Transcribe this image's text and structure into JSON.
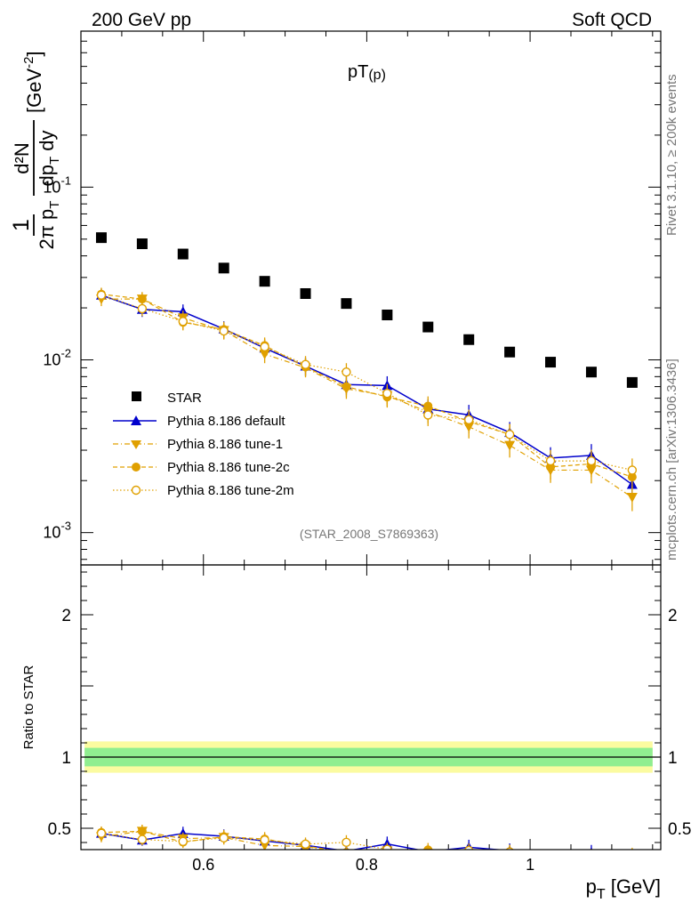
{
  "header": {
    "left": "200 GeV pp",
    "right": "Soft QCD"
  },
  "side": {
    "rivet": "Rivet 3.1.10, ≥ 200k events",
    "mcplots": "mcplots.cern.ch [arXiv:1306.3436]"
  },
  "chart_data": {
    "type": "scatter",
    "title": "pT(p)",
    "title_main": "pT",
    "title_sub": "(p)",
    "analysis_label": "(STAR_2008_S7869363)",
    "xlabel": "p_T [GeV]",
    "xlabel_main": "p",
    "xlabel_sub": "T",
    "xlabel_unit": "[GeV]",
    "ylabel": "1/(2π p_T) d²N/(dp_T dy) [GeV⁻²]",
    "ylabel_parts": {
      "one": "1",
      "denom_a": "2π p",
      "denom_sub": "T",
      "num": "d²N",
      "num_b": "dp",
      "num_b_sub": "T",
      "num_c": " dy",
      "unit": "[GeV",
      "unit_sup": "-2",
      "unit_end": "]"
    },
    "xlim": [
      0.45,
      1.16
    ],
    "ylim": [
      0.00065,
      0.8
    ],
    "yscale": "log",
    "x_ticks": [
      {
        "v": 0.6,
        "label": "0.6"
      },
      {
        "v": 0.8,
        "label": "0.8"
      },
      {
        "v": 1.0,
        "label": "1"
      }
    ],
    "y_ticks": [
      {
        "v": 0.001,
        "base": "10",
        "exp": "-3"
      },
      {
        "v": 0.01,
        "base": "10",
        "exp": "-2"
      },
      {
        "v": 0.1,
        "base": "10",
        "exp": "-1"
      }
    ],
    "x": [
      0.475,
      0.525,
      0.575,
      0.625,
      0.675,
      0.725,
      0.775,
      0.825,
      0.875,
      0.925,
      0.975,
      1.025,
      1.075,
      1.125
    ],
    "series": [
      {
        "name": "STAR",
        "color": "#000000",
        "marker": "square",
        "line": "none",
        "values": [
          0.051,
          0.047,
          0.041,
          0.034,
          0.0285,
          0.0242,
          0.0212,
          0.0182,
          0.0155,
          0.0131,
          0.0111,
          0.0097,
          0.0085,
          0.0074
        ]
      },
      {
        "name": "Pythia 8.186 default",
        "color": "#0000cc",
        "marker": "triangle-up",
        "line": "solid",
        "values": [
          0.0237,
          0.0196,
          0.019,
          0.0151,
          0.0117,
          0.0092,
          0.0072,
          0.0071,
          0.0052,
          0.0048,
          0.0038,
          0.0027,
          0.0028,
          0.0019
        ]
      },
      {
        "name": "Pythia 8.186 tune-1",
        "color": "#e0a000",
        "marker": "triangle-down",
        "line": "dashdot",
        "values": [
          0.0225,
          0.0225,
          0.0175,
          0.0148,
          0.0108,
          0.009,
          0.0068,
          0.0062,
          0.005,
          0.0041,
          0.0032,
          0.0023,
          0.0023,
          0.0016
        ]
      },
      {
        "name": "Pythia 8.186 tune-2c",
        "color": "#e0a000",
        "marker": "circle",
        "line": "dashed",
        "values": [
          0.024,
          0.0225,
          0.0165,
          0.015,
          0.0121,
          0.0091,
          0.007,
          0.0061,
          0.0054,
          0.0044,
          0.0037,
          0.0024,
          0.0025,
          0.0021
        ]
      },
      {
        "name": "Pythia 8.186 tune-2m",
        "color": "#e0a000",
        "marker": "circle-open",
        "line": "dotted",
        "values": [
          0.0237,
          0.0198,
          0.0167,
          0.0147,
          0.0119,
          0.0094,
          0.0085,
          0.0064,
          0.0048,
          0.0045,
          0.0037,
          0.0026,
          0.0026,
          0.0023
        ]
      }
    ],
    "ratio_panel": {
      "ylabel": "Ratio to STAR",
      "ylim": [
        0.35,
        2.35
      ],
      "y_ticks": [
        {
          "v": 0.5,
          "label": "0.5"
        },
        {
          "v": 1,
          "label": "1"
        },
        {
          "v": 2,
          "label": "2"
        }
      ],
      "band_inner": [
        0.935,
        1.065
      ],
      "band_outer": [
        0.89,
        1.11
      ]
    }
  }
}
